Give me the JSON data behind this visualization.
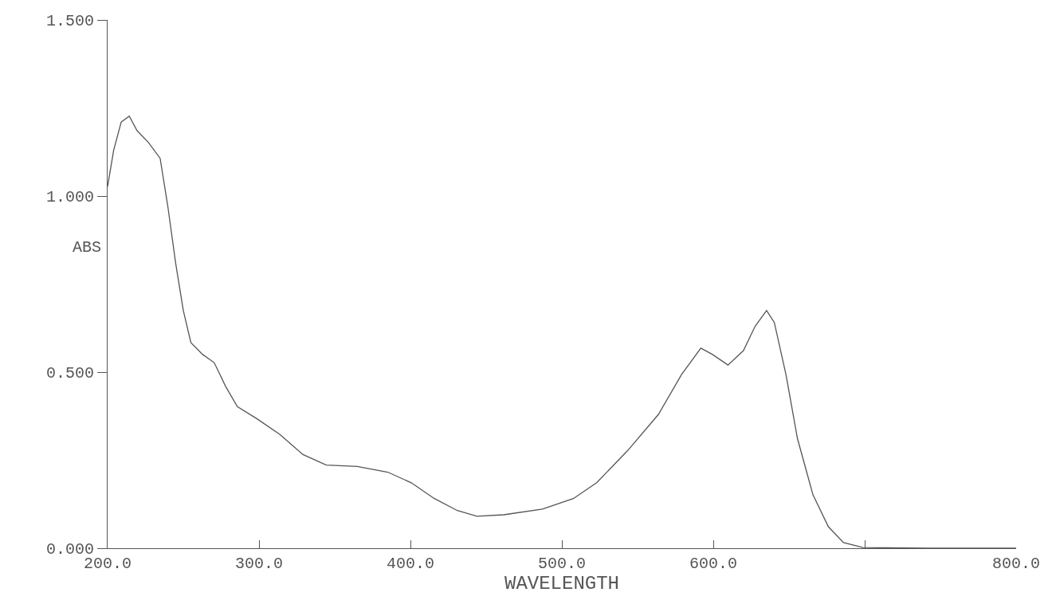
{
  "chart_data": {
    "type": "line",
    "xlabel": "WAVELENGTH",
    "ylabel": "ABS",
    "x": [
      200,
      204,
      209,
      214.3,
      219.4,
      227,
      234.7,
      239.8,
      244.9,
      250,
      255,
      262.8,
      270.4,
      278,
      285.7,
      298.5,
      313.8,
      329,
      344.4,
      364.8,
      385,
      400.5,
      415.8,
      431,
      443.9,
      461.7,
      487.2,
      507.6,
      523,
      543.4,
      563.8,
      579,
      591.8,
      599.5,
      609.7,
      619.9,
      627.6,
      635.2,
      640.3,
      648,
      655.6,
      665.8,
      676,
      686,
      698.8,
      742,
      800
    ],
    "series": [
      {
        "color": "#555555",
        "values": [
          1.027,
          1.13,
          1.21,
          1.227,
          1.186,
          1.152,
          1.107,
          0.97,
          0.811,
          0.675,
          0.584,
          0.55,
          0.527,
          0.459,
          0.402,
          0.368,
          0.323,
          0.266,
          0.236,
          0.232,
          0.216,
          0.186,
          0.141,
          0.107,
          0.091,
          0.095,
          0.111,
          0.141,
          0.186,
          0.277,
          0.38,
          0.493,
          0.568,
          0.55,
          0.52,
          0.561,
          0.63,
          0.675,
          0.641,
          0.493,
          0.311,
          0.152,
          0.061,
          0.016,
          0.002,
          0.0,
          0.0
        ]
      }
    ],
    "xlim": [
      200,
      800
    ],
    "xticks": [
      {
        "value": 200,
        "label": "200.0"
      },
      {
        "value": 300,
        "label": "300.0"
      },
      {
        "value": 400,
        "label": "400.0"
      },
      {
        "value": 500,
        "label": "500.0"
      },
      {
        "value": 600,
        "label": "600.0"
      },
      {
        "value": 700,
        "label": null
      },
      {
        "value": 800,
        "label": "800.0"
      }
    ],
    "ylim": [
      0,
      1.5
    ],
    "yticks": [
      {
        "value": 0,
        "label": "0.000"
      },
      {
        "value": 0.5,
        "label": "0.500"
      },
      {
        "value": 1.0,
        "label": "1.000"
      },
      {
        "value": 1.5,
        "label": "1.500"
      }
    ],
    "marker": "none",
    "line_style": "solid"
  }
}
